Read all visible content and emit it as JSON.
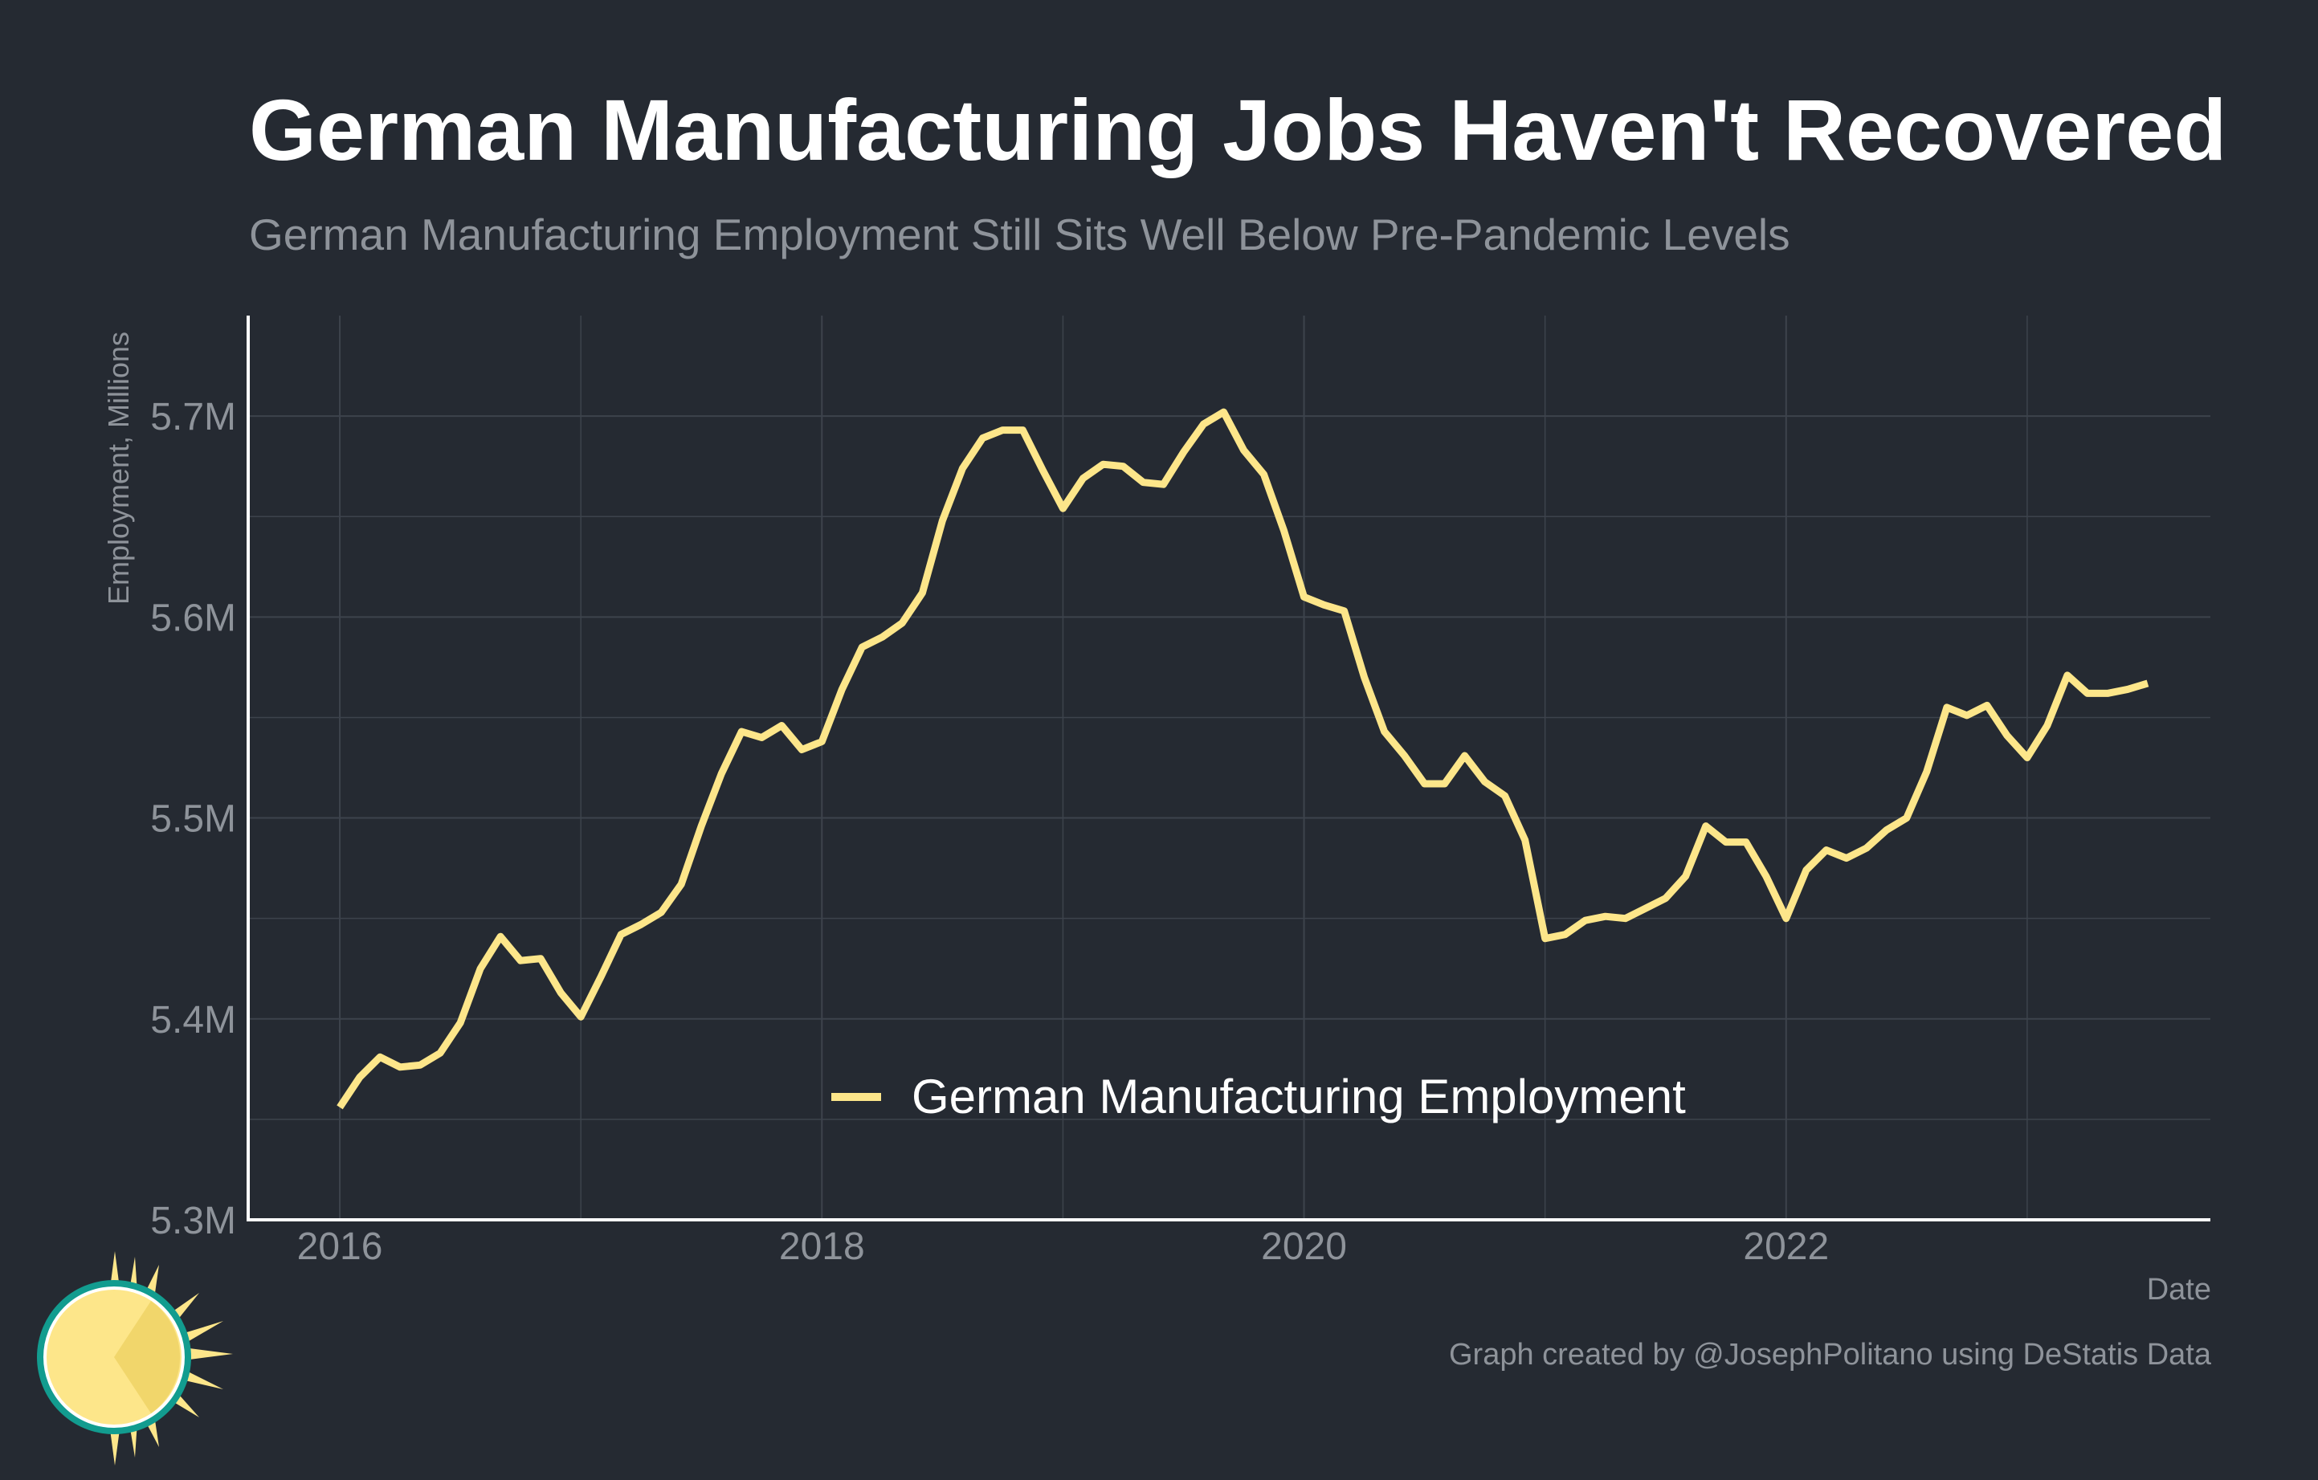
{
  "title": "German Manufacturing Jobs Haven't Recovered",
  "subtitle": "German Manufacturing Employment Still Sits Well Below Pre-Pandemic Levels",
  "caption": "Graph created by @JosephPolitano using DeStatis Data",
  "colors": {
    "background": "#252a32",
    "line": "#fde68a",
    "grid": "#3d434c",
    "muted_text": "#8e939a",
    "axis": "#ffffff"
  },
  "logo": {
    "icon": "sun-logo-icon"
  },
  "chart_data": {
    "type": "line",
    "title": "German Manufacturing Jobs Haven't Recovered",
    "subtitle": "German Manufacturing Employment Still Sits Well Below Pre-Pandemic Levels",
    "xlabel": "Date",
    "ylabel": "Employment, Millions",
    "xlim": [
      2015.62,
      2023.76
    ],
    "ylim": [
      5.3,
      5.75
    ],
    "x_ticks": [
      2016,
      2018,
      2020,
      2022
    ],
    "x_tick_labels": [
      "2016",
      "2018",
      "2020",
      "2022"
    ],
    "y_ticks": [
      5.3,
      5.4,
      5.5,
      5.6,
      5.7
    ],
    "y_tick_labels": [
      "5.3M",
      "5.4M",
      "5.5M",
      "5.6M",
      "5.7M"
    ],
    "y_minor_ticks": [
      5.35,
      5.45,
      5.55,
      5.65
    ],
    "x_minor_ticks": [
      2017,
      2019,
      2021,
      2023
    ],
    "grid": true,
    "legend_position": "bottom-center",
    "series": [
      {
        "name": "German Manufacturing Employment",
        "color": "#fde68a",
        "x": [
          2016.0,
          2016.0833,
          2016.1667,
          2016.25,
          2016.3333,
          2016.4167,
          2016.5,
          2016.5833,
          2016.6667,
          2016.75,
          2016.8333,
          2016.9167,
          2017.0,
          2017.0833,
          2017.1667,
          2017.25,
          2017.3333,
          2017.4167,
          2017.5,
          2017.5833,
          2017.6667,
          2017.75,
          2017.8333,
          2017.9167,
          2018.0,
          2018.0833,
          2018.1667,
          2018.25,
          2018.3333,
          2018.4167,
          2018.5,
          2018.5833,
          2018.6667,
          2018.75,
          2018.8333,
          2018.9167,
          2019.0,
          2019.0833,
          2019.1667,
          2019.25,
          2019.3333,
          2019.4167,
          2019.5,
          2019.5833,
          2019.6667,
          2019.75,
          2019.8333,
          2019.9167,
          2020.0,
          2020.0833,
          2020.1667,
          2020.25,
          2020.3333,
          2020.4167,
          2020.5,
          2020.5833,
          2020.6667,
          2020.75,
          2020.8333,
          2020.9167,
          2021.0,
          2021.0833,
          2021.1667,
          2021.25,
          2021.3333,
          2021.4167,
          2021.5,
          2021.5833,
          2021.6667,
          2021.75,
          2021.8333,
          2021.9167,
          2022.0,
          2022.0833,
          2022.1667,
          2022.25,
          2022.3333,
          2022.4167,
          2022.5,
          2022.5833,
          2022.6667,
          2022.75,
          2022.8333,
          2022.9167,
          2023.0,
          2023.0833,
          2023.1667,
          2023.25,
          2023.3333,
          2023.4167,
          2023.5
        ],
        "values": [
          5.356,
          5.371,
          5.381,
          5.376,
          5.377,
          5.383,
          5.398,
          5.425,
          5.441,
          5.429,
          5.43,
          5.413,
          5.401,
          5.421,
          5.442,
          5.447,
          5.453,
          5.467,
          5.496,
          5.522,
          5.543,
          5.54,
          5.546,
          5.534,
          5.538,
          5.564,
          5.585,
          5.59,
          5.597,
          5.612,
          5.648,
          5.674,
          5.689,
          5.693,
          5.693,
          5.673,
          5.654,
          5.669,
          5.676,
          5.675,
          5.667,
          5.666,
          5.682,
          5.696,
          5.702,
          5.683,
          5.671,
          5.643,
          5.61,
          5.606,
          5.603,
          5.57,
          5.543,
          5.531,
          5.517,
          5.517,
          5.531,
          5.518,
          5.511,
          5.489,
          5.44,
          5.442,
          5.449,
          5.451,
          5.45,
          5.455,
          5.46,
          5.471,
          5.496,
          5.488,
          5.488,
          5.471,
          5.45,
          5.474,
          5.484,
          5.48,
          5.485,
          5.494,
          5.5,
          5.523,
          5.555,
          5.551,
          5.556,
          5.541,
          5.53,
          5.546,
          5.571,
          5.562,
          5.562,
          5.564,
          5.567
        ]
      }
    ]
  }
}
